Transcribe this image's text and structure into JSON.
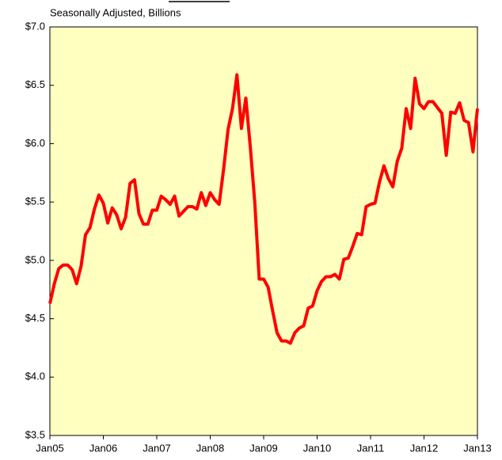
{
  "chart_data": {
    "type": "line",
    "subtitle": "Seasonally Adjusted, Billions",
    "categories": [
      "Jan05",
      null,
      null,
      null,
      null,
      null,
      null,
      null,
      null,
      null,
      null,
      null,
      "Jan06",
      null,
      null,
      null,
      null,
      null,
      null,
      null,
      null,
      null,
      null,
      null,
      "Jan07",
      null,
      null,
      null,
      null,
      null,
      null,
      null,
      null,
      null,
      null,
      null,
      "Jan08",
      null,
      null,
      null,
      null,
      null,
      null,
      null,
      null,
      null,
      null,
      null,
      "Jan09",
      null,
      null,
      null,
      null,
      null,
      null,
      null,
      null,
      null,
      null,
      null,
      "Jan10",
      null,
      null,
      null,
      null,
      null,
      null,
      null,
      null,
      null,
      null,
      null,
      "Jan11",
      null,
      null,
      null,
      null,
      null,
      null,
      null,
      null,
      null,
      null,
      null,
      "Jan12",
      null,
      null,
      null,
      null,
      null,
      null,
      null,
      null,
      null,
      null,
      null,
      "Jan13"
    ],
    "values": [
      4.63,
      4.8,
      4.93,
      4.96,
      4.96,
      4.92,
      4.8,
      4.95,
      5.22,
      5.28,
      5.44,
      5.56,
      5.49,
      5.32,
      5.45,
      5.39,
      5.27,
      5.37,
      5.66,
      5.69,
      5.4,
      5.31,
      5.31,
      5.43,
      5.43,
      5.55,
      5.52,
      5.48,
      5.55,
      5.38,
      5.42,
      5.46,
      5.46,
      5.44,
      5.58,
      5.47,
      5.58,
      5.52,
      5.48,
      5.78,
      6.12,
      6.3,
      6.59,
      6.13,
      6.39,
      5.97,
      5.5,
      4.84,
      4.84,
      4.77,
      4.57,
      4.38,
      4.31,
      4.31,
      4.29,
      4.38,
      4.42,
      4.44,
      4.59,
      4.61,
      4.74,
      4.82,
      4.86,
      4.86,
      4.88,
      4.84,
      5.01,
      5.02,
      5.12,
      5.23,
      5.22,
      5.46,
      5.48,
      5.49,
      5.67,
      5.81,
      5.7,
      5.63,
      5.85,
      5.96,
      6.3,
      6.13,
      6.56,
      6.34,
      6.3,
      6.36,
      6.36,
      6.31,
      6.26,
      5.9,
      6.27,
      6.26,
      6.35,
      6.2,
      6.18,
      5.93,
      6.3
    ],
    "color": "#ff0000",
    "background": "#ffffc0",
    "ylim": [
      3.5,
      7.0
    ],
    "yticks": [
      {
        "value": 3.5,
        "label": "$3.5"
      },
      {
        "value": 4.0,
        "label": "$4.0"
      },
      {
        "value": 4.5,
        "label": "$4.5"
      },
      {
        "value": 5.0,
        "label": "$5.0"
      },
      {
        "value": 5.5,
        "label": "$5.5"
      },
      {
        "value": 6.0,
        "label": "$6.0"
      },
      {
        "value": 6.5,
        "label": "$6.5"
      },
      {
        "value": 7.0,
        "label": "$7.0"
      }
    ],
    "grid": false
  }
}
